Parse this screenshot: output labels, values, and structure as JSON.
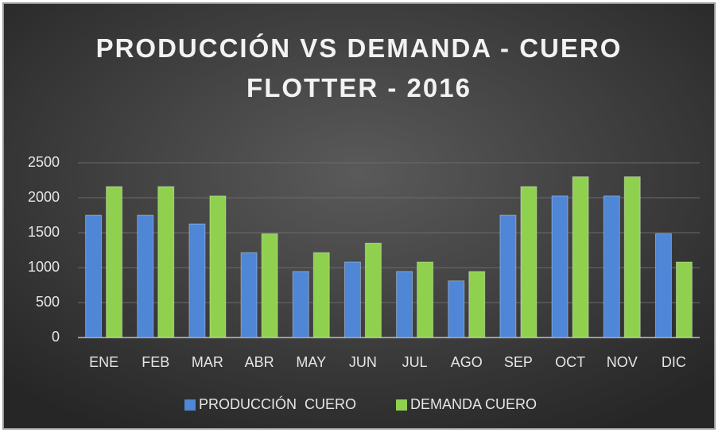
{
  "chart_data": {
    "type": "bar",
    "title": "PRODUCCIÓN VS DEMANDA - CUERO FLOTTER - 2016",
    "categories": [
      "ENE",
      "FEB",
      "MAR",
      "ABR",
      "MAY",
      "JUN",
      "JUL",
      "AGO",
      "SEP",
      "OCT",
      "NOV",
      "DIC"
    ],
    "series": [
      {
        "name": "PRODUCCIÓN  CUERO",
        "color": "#4f86d6",
        "values": [
          1750,
          1750,
          1625,
          1215,
          945,
          1080,
          945,
          810,
          1750,
          2025,
          2025,
          1485
        ]
      },
      {
        "name": "DEMANDA CUERO",
        "color": "#8fd14f",
        "values": [
          2160,
          2160,
          2025,
          1485,
          1215,
          1350,
          1080,
          945,
          2160,
          2300,
          2300,
          1080
        ]
      }
    ],
    "ylim": [
      0,
      2500
    ],
    "yticks": [
      0,
      500,
      1000,
      1500,
      2000,
      2500
    ],
    "grid": true,
    "legend": "bottom"
  }
}
